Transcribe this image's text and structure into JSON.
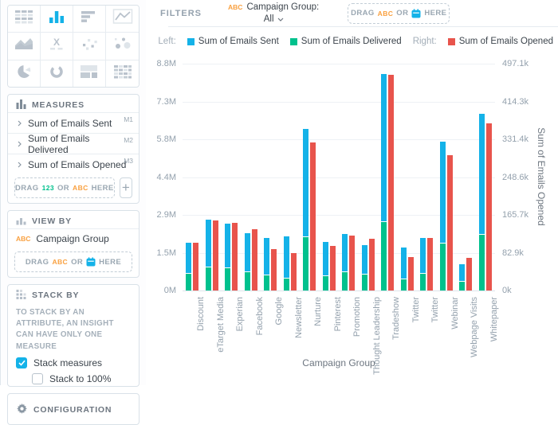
{
  "colors": {
    "accent": "#14b2e8",
    "attr_orange": "#f9a03f",
    "num_green": "#00c18d",
    "bar_blue": "#14b2e8",
    "bar_green": "#00c18d",
    "bar_red": "#e8544c"
  },
  "sidebar": {
    "vis_types": [
      {
        "name": "table"
      },
      {
        "name": "column-chart",
        "selected": true
      },
      {
        "name": "bar-chart"
      },
      {
        "name": "line-chart"
      },
      {
        "name": "area-chart"
      },
      {
        "name": "headline"
      },
      {
        "name": "scatter-plot"
      },
      {
        "name": "bubble-chart"
      },
      {
        "name": "pie-chart"
      },
      {
        "name": "donut-chart"
      },
      {
        "name": "treemap"
      },
      {
        "name": "heatmap"
      }
    ],
    "measures": {
      "title": "MEASURES",
      "items": [
        {
          "label": "Sum of Emails Sent",
          "tag": "M1"
        },
        {
          "label": "Sum of Emails Delivered",
          "tag": "M2"
        },
        {
          "label": "Sum of Emails Opened",
          "tag": "M3"
        }
      ],
      "drop_tokens": [
        {
          "t": "DRAG"
        },
        {
          "t": "123",
          "k": "num"
        },
        {
          "t": "OR"
        },
        {
          "t": "ABC",
          "k": "attr"
        },
        {
          "t": "HERE"
        }
      ],
      "add_button": "+"
    },
    "view_by": {
      "title": "VIEW BY",
      "items": [
        {
          "tag": "ABC",
          "label": "Campaign Group"
        }
      ],
      "drop_tokens": [
        {
          "t": "DRAG"
        },
        {
          "t": "ABC",
          "k": "attr"
        },
        {
          "t": "OR"
        },
        {
          "icon": "calendar"
        },
        {
          "t": "HERE"
        }
      ]
    },
    "stack_by": {
      "title": "STACK BY",
      "hint": "TO STACK BY AN ATTRIBUTE, AN INSIGHT CAN HAVE ONLY ONE MEASURE",
      "options": [
        {
          "label": "Stack measures",
          "checked": true
        },
        {
          "label": "Stack to 100%",
          "checked": false
        }
      ]
    },
    "configuration": {
      "title": "CONFIGURATION"
    }
  },
  "filters": {
    "label": "FILTERS",
    "chip": {
      "attr_tag": "ABC",
      "title": "Campaign Group:",
      "value": "All"
    },
    "drop_tokens": [
      {
        "t": "DRAG"
      },
      {
        "t": "ABC",
        "k": "attr"
      },
      {
        "t": "OR"
      },
      {
        "icon": "calendar"
      },
      {
        "t": "HERE"
      }
    ]
  },
  "legend": {
    "groups": [
      {
        "label": "Left:",
        "items": [
          {
            "name": "Sum of Emails Sent",
            "color": "#14b2e8"
          },
          {
            "name": "Sum of Emails Delivered",
            "color": "#00c18d"
          }
        ]
      },
      {
        "label": "Right:",
        "items": [
          {
            "name": "Sum of Emails Opened",
            "color": "#e8544c"
          }
        ]
      }
    ]
  },
  "chart_data": {
    "type": "bar",
    "stacked_left_axis": true,
    "title": "",
    "xlabel": "Campaign Group",
    "ylabel_left": "",
    "ylabel_right": "Sum of Emails Opened",
    "grid": true,
    "legend_position": "top",
    "categories": [
      "Discount",
      "eTarget Media",
      "Experian",
      "Facebook",
      "Google",
      "Newsletter",
      "Nurture",
      "Pinterest",
      "Promotion",
      "Thought Leadership",
      "Tradeshow",
      "Twitter",
      "Twitter",
      "Webinar",
      "Webpage Visits",
      "Whitepaper"
    ],
    "left_axis": {
      "max": 8800000,
      "ticks": [
        "0M",
        "1.5M",
        "2.9M",
        "4.4M",
        "5.8M",
        "7.3M",
        "8.8M"
      ]
    },
    "right_axis": {
      "max": 497100,
      "ticks": [
        "0k",
        "82.9k",
        "165.7k",
        "248.6k",
        "331.4k",
        "414.3k",
        "497.1k"
      ]
    },
    "series": [
      {
        "name": "Sum of Emails Sent",
        "axis": "left",
        "color": "#14b2e8",
        "values": [
          1160000,
          1820000,
          1690000,
          1480000,
          1430000,
          1600000,
          4160000,
          1310000,
          1440000,
          1100000,
          5710000,
          1190000,
          1370000,
          3920000,
          650000,
          4670000
        ]
      },
      {
        "name": "Sum of Emails Delivered",
        "axis": "left",
        "color": "#00c18d",
        "values": [
          640000,
          880000,
          860000,
          720000,
          600000,
          460000,
          2060000,
          570000,
          720000,
          620000,
          2650000,
          430000,
          640000,
          1830000,
          330000,
          2170000
        ]
      },
      {
        "name": "Sum of Emails Opened",
        "axis": "right",
        "color": "#e8544c",
        "values": [
          105000,
          154000,
          149000,
          134000,
          90000,
          82000,
          324000,
          97000,
          121000,
          114000,
          473000,
          73000,
          115000,
          297000,
          71000,
          367000
        ]
      }
    ]
  }
}
